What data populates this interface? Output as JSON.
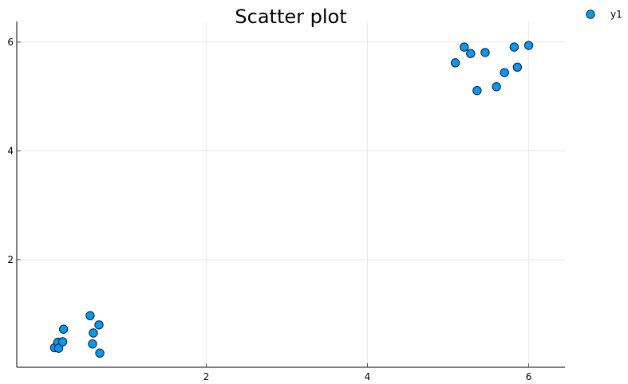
{
  "chart_data": {
    "type": "scatter",
    "title": "Scatter plot",
    "xlabel": "",
    "ylabel": "",
    "xlim": [
      -0.35,
      6.45
    ],
    "ylim": [
      0.02,
      6.38
    ],
    "x_ticks": [
      2,
      4,
      6
    ],
    "x_tick_labels": [
      "2",
      "4",
      "6"
    ],
    "y_ticks": [
      2,
      4,
      6
    ],
    "y_tick_labels": [
      "2",
      "4",
      "6"
    ],
    "grid": true,
    "legend_position": "top-right",
    "series": [
      {
        "name": "y1",
        "color": "#009AFA",
        "marker": "circle",
        "points": [
          {
            "x": 0.12,
            "y": 0.38
          },
          {
            "x": 0.16,
            "y": 0.48
          },
          {
            "x": 0.17,
            "y": 0.37
          },
          {
            "x": 0.22,
            "y": 0.49
          },
          {
            "x": 0.23,
            "y": 0.72
          },
          {
            "x": 0.56,
            "y": 0.97
          },
          {
            "x": 0.59,
            "y": 0.45
          },
          {
            "x": 0.6,
            "y": 0.65
          },
          {
            "x": 0.67,
            "y": 0.8
          },
          {
            "x": 0.68,
            "y": 0.28
          },
          {
            "x": 5.09,
            "y": 5.62
          },
          {
            "x": 5.2,
            "y": 5.91
          },
          {
            "x": 5.28,
            "y": 5.79
          },
          {
            "x": 5.36,
            "y": 5.11
          },
          {
            "x": 5.46,
            "y": 5.81
          },
          {
            "x": 5.6,
            "y": 5.18
          },
          {
            "x": 5.7,
            "y": 5.44
          },
          {
            "x": 5.82,
            "y": 5.91
          },
          {
            "x": 5.86,
            "y": 5.54
          },
          {
            "x": 6.0,
            "y": 5.94
          }
        ]
      }
    ]
  }
}
